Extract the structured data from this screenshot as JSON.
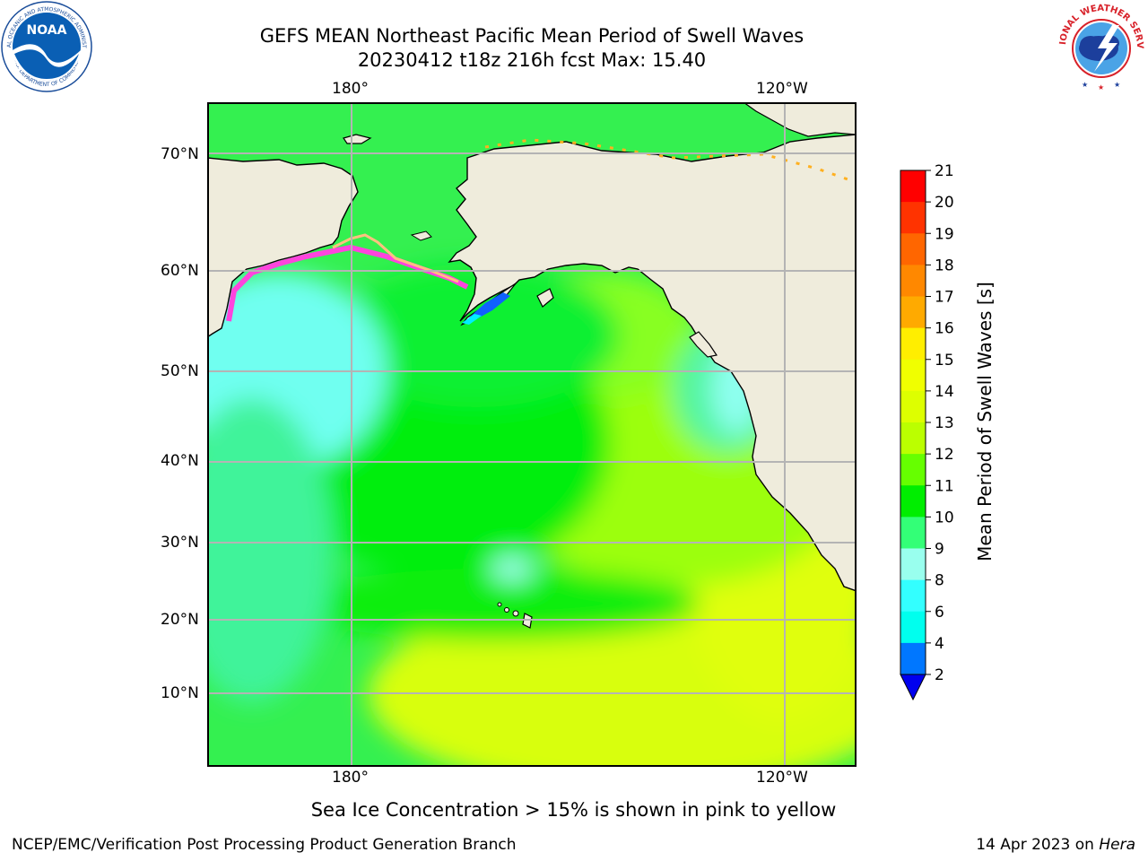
{
  "title": {
    "line1": "GEFS MEAN Northeast Pacific Mean Period of Swell Waves",
    "line2": "20230412 t18z 216h fcst   Max: 15.40"
  },
  "map": {
    "lon_labels_top": [
      "180°",
      "120°W"
    ],
    "lon_labels_bottom": [
      "180°",
      "120°W"
    ],
    "lat_labels": [
      "70°N",
      "60°N",
      "50°N",
      "40°N",
      "30°N",
      "20°N",
      "10°N"
    ],
    "colors": {
      "land": "#efecdc",
      "ocean_base": "#34f050",
      "gridline": "#b4b4b4",
      "coast": "#000000"
    }
  },
  "colorbar": {
    "title": "Mean Period of Swell Waves [s]",
    "ticks": [
      "21",
      "20",
      "19",
      "18",
      "17",
      "16",
      "15",
      "14",
      "13",
      "12",
      "11",
      "10",
      "9",
      "8",
      "6",
      "4",
      "2"
    ],
    "colors": [
      "#ff0000",
      "#ff3300",
      "#ff6600",
      "#ff8800",
      "#ffaa00",
      "#ffee00",
      "#f0ff00",
      "#ddff00",
      "#bbff00",
      "#66ff00",
      "#00ee00",
      "#33ff77",
      "#99ffee",
      "#33ffff",
      "#00ffee",
      "#0077ff"
    ],
    "extend_color": "#0000ee"
  },
  "note": "Sea Ice Concentration > 15% is shown in pink to yellow",
  "footer": {
    "left": "NCEP/EMC/Verification Post Processing Product Generation Branch",
    "right_prefix": "14 Apr 2023 on ",
    "right_italic": "Hera"
  },
  "logos": {
    "noaa_text": "NOAA",
    "noaa_ring_top": "NATIONAL OCEANIC AND ATMOSPHERIC ADMINISTRATION",
    "noaa_ring_bottom": "U.S. DEPARTMENT OF COMMERCE",
    "nws_ring": "NATIONAL WEATHER SERVICE"
  }
}
